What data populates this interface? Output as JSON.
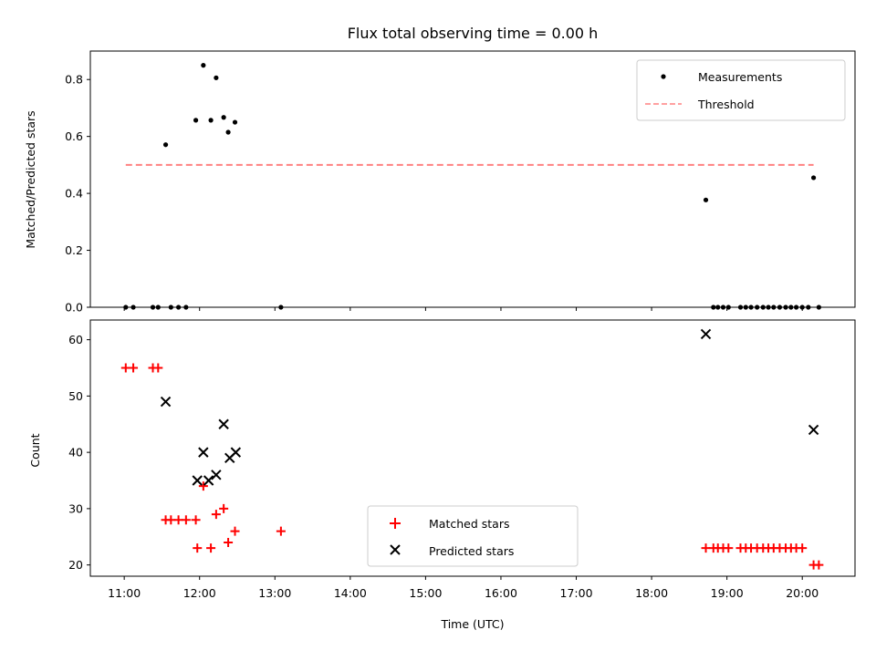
{
  "chart_data": [
    {
      "type": "scatter",
      "title": "Flux total observing time = 0.00 h",
      "xlabel": "",
      "ylabel": "Matched/Predicted stars",
      "xlim": [
        10.55,
        20.7
      ],
      "ylim": [
        0.0,
        0.9
      ],
      "yticks": [
        0.0,
        0.2,
        0.4,
        0.6,
        0.8
      ],
      "ytick_labels": [
        "0.0",
        "0.2",
        "0.4",
        "0.6",
        "0.8"
      ],
      "grid": false,
      "legend_position": "upper-right",
      "series": [
        {
          "name": "Measurements",
          "kind": "scatter",
          "marker": "dot",
          "color": "#000000",
          "x": [
            11.02,
            11.12,
            11.38,
            11.45,
            11.55,
            11.62,
            11.72,
            11.82,
            11.95,
            12.05,
            12.15,
            12.22,
            12.32,
            12.38,
            12.47,
            13.08,
            18.72,
            18.82,
            18.88,
            18.95,
            19.02,
            19.18,
            19.25,
            19.32,
            19.4,
            19.48,
            19.55,
            19.62,
            19.7,
            19.78,
            19.85,
            19.92,
            20.0,
            20.08,
            20.15,
            20.22
          ],
          "y": [
            0.0,
            0.0,
            0.0,
            0.0,
            0.571,
            0.0,
            0.0,
            0.0,
            0.657,
            0.85,
            0.657,
            0.806,
            0.667,
            0.615,
            0.65,
            0.0,
            0.377,
            0.0,
            0.0,
            0.0,
            0.0,
            0.0,
            0.0,
            0.0,
            0.0,
            0.0,
            0.0,
            0.0,
            0.0,
            0.0,
            0.0,
            0.0,
            0.0,
            0.0,
            0.455,
            0.0
          ]
        },
        {
          "name": "Threshold",
          "kind": "line",
          "style": "dashed",
          "color": "#ff8080",
          "x": [
            11.02,
            20.15
          ],
          "y": [
            0.5,
            0.5
          ]
        }
      ]
    },
    {
      "type": "scatter",
      "title": "",
      "xlabel": "Time (UTC)",
      "ylabel": "Count",
      "xlim": [
        10.55,
        20.7
      ],
      "ylim": [
        18,
        63.5
      ],
      "yticks": [
        20,
        30,
        40,
        50,
        60
      ],
      "ytick_labels": [
        "20",
        "30",
        "40",
        "50",
        "60"
      ],
      "xticks": [
        11,
        12,
        13,
        14,
        15,
        16,
        17,
        18,
        19,
        20
      ],
      "xtick_labels": [
        "11:00",
        "12:00",
        "13:00",
        "14:00",
        "15:00",
        "16:00",
        "17:00",
        "18:00",
        "19:00",
        "20:00"
      ],
      "grid": false,
      "legend_position": "lower-center",
      "series": [
        {
          "name": "Matched stars",
          "kind": "scatter",
          "marker": "plus",
          "color": "#ff0000",
          "x": [
            11.02,
            11.12,
            11.38,
            11.45,
            11.55,
            11.62,
            11.72,
            11.82,
            11.95,
            11.97,
            12.05,
            12.15,
            12.22,
            12.32,
            12.38,
            12.47,
            13.08,
            18.72,
            18.82,
            18.88,
            18.95,
            19.02,
            19.18,
            19.25,
            19.32,
            19.4,
            19.48,
            19.55,
            19.62,
            19.7,
            19.78,
            19.85,
            19.92,
            20.0,
            20.15,
            20.22
          ],
          "y": [
            55,
            55,
            55,
            55,
            28,
            28,
            28,
            28,
            28,
            23,
            34,
            23,
            29,
            30,
            24,
            26,
            26,
            23,
            23,
            23,
            23,
            23,
            23,
            23,
            23,
            23,
            23,
            23,
            23,
            23,
            23,
            23,
            23,
            23,
            20,
            20
          ]
        },
        {
          "name": "Predicted stars",
          "kind": "scatter",
          "marker": "x",
          "color": "#000000",
          "x": [
            11.55,
            11.97,
            12.05,
            12.12,
            12.22,
            12.32,
            12.4,
            12.48,
            18.72,
            20.15
          ],
          "y": [
            49,
            35,
            40,
            35,
            36,
            45,
            39,
            40,
            61,
            44
          ]
        }
      ]
    }
  ]
}
